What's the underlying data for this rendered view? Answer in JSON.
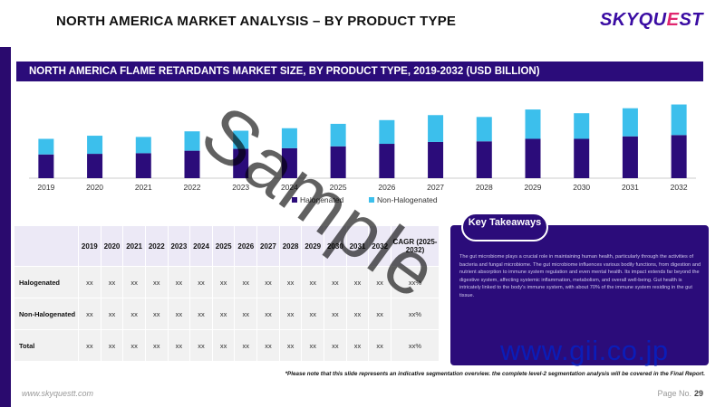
{
  "header": {
    "title": "NORTH AMERICA MARKET ANALYSIS – BY PRODUCT TYPE",
    "logo_main": "SKYQU",
    "logo_q": "E",
    "logo_rest": "ST"
  },
  "chart_header": "NORTH AMERICA FLAME RETARDANTS MARKET SIZE,  BY PRODUCT TYPE, 2019-2032 (USD BILLION)",
  "colors": {
    "navy": "#2b0c7a",
    "cyan": "#3cbfec",
    "watermark": "#000000",
    "gii": "#0b1db8"
  },
  "chart_data": {
    "type": "bar",
    "stacked": true,
    "title": "NORTH AMERICA FLAME RETARDANTS MARKET SIZE,  BY PRODUCT TYPE, 2019-2032 (USD BILLION)",
    "categories": [
      "2019",
      "2020",
      "2021",
      "2022",
      "2023",
      "2024",
      "2025",
      "2026",
      "2027",
      "2028",
      "2029",
      "2030",
      "2031",
      "2032"
    ],
    "series": [
      {
        "name": "Halogenated",
        "color": "#2b0c7a",
        "values": [
          1.9,
          1.95,
          2.0,
          2.2,
          2.35,
          2.4,
          2.55,
          2.75,
          2.9,
          2.95,
          3.15,
          3.15,
          3.35,
          3.45
        ]
      },
      {
        "name": "Non-Halogenated",
        "color": "#3cbfec",
        "values": [
          1.25,
          1.45,
          1.3,
          1.55,
          1.45,
          1.6,
          1.8,
          1.9,
          2.15,
          1.95,
          2.35,
          2.05,
          2.25,
          2.45
        ]
      }
    ],
    "ylim": [
      0,
      6.3
    ],
    "legend": "bottom"
  },
  "table": {
    "years": [
      "2019",
      "2020",
      "2021",
      "2022",
      "2023",
      "2024",
      "2025",
      "2026",
      "2027",
      "2028",
      "2029",
      "2030",
      "2031",
      "2032"
    ],
    "cagr_header": "CAGR (2025-2032)",
    "rows": [
      {
        "label": "Halogenated",
        "cells": [
          "xx",
          "xx",
          "xx",
          "xx",
          "xx",
          "xx",
          "xx",
          "xx",
          "xx",
          "xx",
          "xx",
          "xx",
          "xx",
          "xx"
        ],
        "cagr": "xx%"
      },
      {
        "label": "Non-Halogenated",
        "cells": [
          "xx",
          "xx",
          "xx",
          "xx",
          "xx",
          "xx",
          "xx",
          "xx",
          "xx",
          "xx",
          "xx",
          "xx",
          "xx",
          "xx"
        ],
        "cagr": "xx%"
      },
      {
        "label": "Total",
        "cells": [
          "xx",
          "xx",
          "xx",
          "xx",
          "xx",
          "xx",
          "xx",
          "xx",
          "xx",
          "xx",
          "xx",
          "xx",
          "xx",
          "xx"
        ],
        "cagr": "xx%"
      }
    ]
  },
  "takeaways": {
    "label": "Key Takeaways",
    "text": "The gut microbiome plays a crucial role in maintaining human health, particularly through the activities of bacteria and fungal microbiome. The gut microbiome influences various bodily functions, from digestion and nutrient absorption to immune system regulation and even mental health. Its impact extends far beyond the digestive system, affecting systemic inflammation, metabolism, and overall well-being. Gut health is intricately linked to the body's immune system, with about 70% of the immune system residing in the gut tissue."
  },
  "footnote": "*Please note that this slide represents an indicative segmentation overview. the complete level-2 segmentation analysis will be covered in the Final Report.",
  "footer": {
    "site": "www.skyquestt.com",
    "page_label": "Page No.",
    "page_number": "29"
  },
  "watermark": {
    "sample": "Sample",
    "gii": "www.gii.co.jp"
  }
}
